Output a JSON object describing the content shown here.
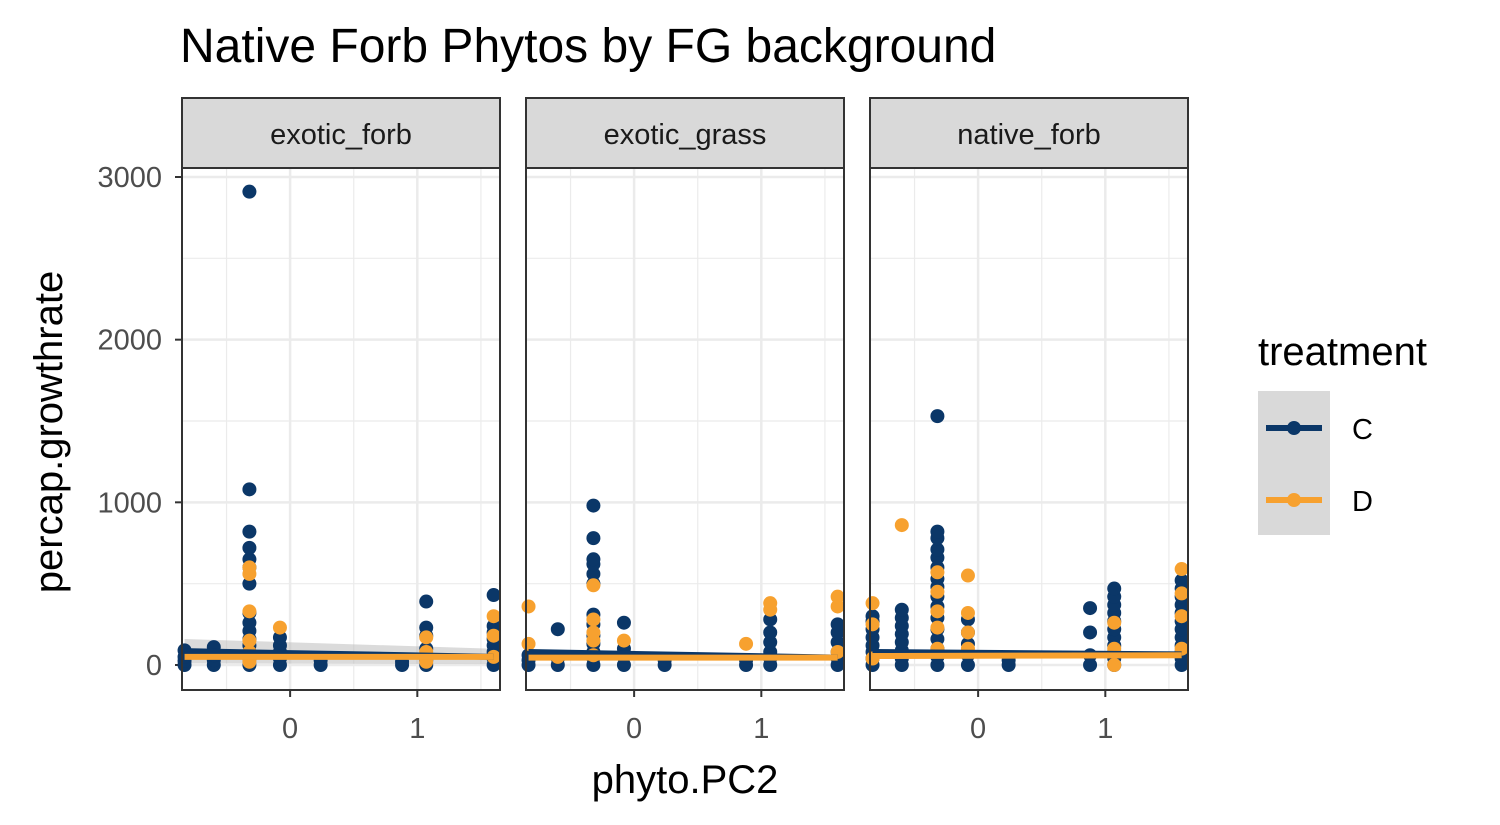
{
  "title": "Native Forb Phytos by FG background",
  "colors": {
    "C": "#0b3768",
    "D": "#f7a12f",
    "strip_bg": "#d9d9d9",
    "grid": "#ebebeb",
    "ribbon": "#bdbdbd"
  },
  "legend": {
    "title": "treatment",
    "entries": [
      {
        "key": "C",
        "label": "C",
        "color": "#0b3768"
      },
      {
        "key": "D",
        "label": "D",
        "color": "#f7a12f"
      }
    ]
  },
  "chart_data": {
    "type": "scatter",
    "title": "Native Forb Phytos by FG background",
    "xlabel": "phyto.PC2",
    "ylabel": "percap.growthrate",
    "xlim": [
      -0.85,
      1.65
    ],
    "ylim": [
      -160,
      3000
    ],
    "x_ticks": [
      0,
      1
    ],
    "y_ticks": [
      0,
      1000,
      2000,
      3000
    ],
    "facet_var": "background",
    "legend_position": "right",
    "grid": true,
    "smooth": "linear fit per treatment",
    "panels": [
      {
        "label": "exotic_forb",
        "series": [
          {
            "name": "C",
            "points": [
              [
                -0.83,
                0
              ],
              [
                -0.83,
                25
              ],
              [
                -0.83,
                50
              ],
              [
                -0.83,
                90
              ],
              [
                -0.6,
                0
              ],
              [
                -0.6,
                30
              ],
              [
                -0.6,
                60
              ],
              [
                -0.6,
                110
              ],
              [
                -0.32,
                0
              ],
              [
                -0.32,
                40
              ],
              [
                -0.32,
                80
              ],
              [
                -0.32,
                120
              ],
              [
                -0.32,
                160
              ],
              [
                -0.32,
                210
              ],
              [
                -0.32,
                260
              ],
              [
                -0.32,
                320
              ],
              [
                -0.32,
                500
              ],
              [
                -0.32,
                600
              ],
              [
                -0.32,
                650
              ],
              [
                -0.32,
                720
              ],
              [
                -0.32,
                820
              ],
              [
                -0.32,
                1080
              ],
              [
                -0.32,
                2910
              ],
              [
                -0.08,
                0
              ],
              [
                -0.08,
                40
              ],
              [
                -0.08,
                80
              ],
              [
                -0.08,
                120
              ],
              [
                -0.08,
                170
              ],
              [
                0.24,
                0
              ],
              [
                0.24,
                30
              ],
              [
                0.88,
                0
              ],
              [
                0.88,
                20
              ],
              [
                1.07,
                0
              ],
              [
                1.07,
                30
              ],
              [
                1.07,
                60
              ],
              [
                1.07,
                100
              ],
              [
                1.07,
                180
              ],
              [
                1.07,
                230
              ],
              [
                1.07,
                390
              ],
              [
                1.6,
                0
              ],
              [
                1.6,
                40
              ],
              [
                1.6,
                80
              ],
              [
                1.6,
                120
              ],
              [
                1.6,
                160
              ],
              [
                1.6,
                200
              ],
              [
                1.6,
                240
              ],
              [
                1.6,
                430
              ]
            ]
          },
          {
            "name": "D",
            "points": [
              [
                -0.32,
                20
              ],
              [
                -0.32,
                80
              ],
              [
                -0.32,
                150
              ],
              [
                -0.32,
                330
              ],
              [
                -0.32,
                560
              ],
              [
                -0.32,
                600
              ],
              [
                -0.08,
                230
              ],
              [
                1.07,
                20
              ],
              [
                1.07,
                80
              ],
              [
                1.07,
                170
              ],
              [
                1.6,
                50
              ],
              [
                1.6,
                180
              ],
              [
                1.6,
                300
              ]
            ]
          }
        ],
        "fits": [
          {
            "name": "C",
            "x": [
              -0.83,
              1.6
            ],
            "y": [
              85,
              50
            ]
          },
          {
            "name": "D",
            "x": [
              -0.83,
              1.6
            ],
            "y": [
              50,
              50
            ]
          }
        ],
        "ribbon": {
          "x": [
            -0.83,
            1.6
          ],
          "lower": [
            10,
            5
          ],
          "upper": [
            160,
            100
          ]
        }
      },
      {
        "label": "exotic_grass",
        "series": [
          {
            "name": "C",
            "points": [
              [
                -0.83,
                0
              ],
              [
                -0.83,
                30
              ],
              [
                -0.83,
                60
              ],
              [
                -0.6,
                0
              ],
              [
                -0.6,
                40
              ],
              [
                -0.6,
                220
              ],
              [
                -0.32,
                0
              ],
              [
                -0.32,
                40
              ],
              [
                -0.32,
                80
              ],
              [
                -0.32,
                130
              ],
              [
                -0.32,
                180
              ],
              [
                -0.32,
                250
              ],
              [
                -0.32,
                310
              ],
              [
                -0.32,
                500
              ],
              [
                -0.32,
                560
              ],
              [
                -0.32,
                620
              ],
              [
                -0.32,
                650
              ],
              [
                -0.32,
                780
              ],
              [
                -0.32,
                980
              ],
              [
                -0.08,
                0
              ],
              [
                -0.08,
                50
              ],
              [
                -0.08,
                100
              ],
              [
                -0.08,
                260
              ],
              [
                0.24,
                0
              ],
              [
                0.24,
                30
              ],
              [
                0.88,
                0
              ],
              [
                0.88,
                30
              ],
              [
                1.07,
                0
              ],
              [
                1.07,
                40
              ],
              [
                1.07,
                80
              ],
              [
                1.07,
                140
              ],
              [
                1.07,
                200
              ],
              [
                1.07,
                280
              ],
              [
                1.6,
                0
              ],
              [
                1.6,
                40
              ],
              [
                1.6,
                80
              ],
              [
                1.6,
                140
              ],
              [
                1.6,
                200
              ],
              [
                1.6,
                250
              ]
            ]
          },
          {
            "name": "D",
            "points": [
              [
                -0.83,
                130
              ],
              [
                -0.83,
                360
              ],
              [
                -0.6,
                50
              ],
              [
                -0.32,
                60
              ],
              [
                -0.32,
                150
              ],
              [
                -0.32,
                200
              ],
              [
                -0.32,
                280
              ],
              [
                -0.32,
                490
              ],
              [
                -0.08,
                150
              ],
              [
                0.88,
                130
              ],
              [
                1.07,
                340
              ],
              [
                1.07,
                380
              ],
              [
                1.6,
                80
              ],
              [
                1.6,
                360
              ],
              [
                1.6,
                420
              ]
            ]
          }
        ],
        "fits": [
          {
            "name": "C",
            "x": [
              -0.83,
              1.6
            ],
            "y": [
              80,
              45
            ]
          },
          {
            "name": "D",
            "x": [
              -0.83,
              1.6
            ],
            "y": [
              45,
              45
            ]
          }
        ],
        "ribbon": null
      },
      {
        "label": "native_forb",
        "series": [
          {
            "name": "C",
            "points": [
              [
                -0.83,
                0
              ],
              [
                -0.83,
                40
              ],
              [
                -0.83,
                80
              ],
              [
                -0.83,
                120
              ],
              [
                -0.83,
                170
              ],
              [
                -0.83,
                220
              ],
              [
                -0.83,
                270
              ],
              [
                -0.83,
                300
              ],
              [
                -0.6,
                0
              ],
              [
                -0.6,
                40
              ],
              [
                -0.6,
                90
              ],
              [
                -0.6,
                140
              ],
              [
                -0.6,
                190
              ],
              [
                -0.6,
                240
              ],
              [
                -0.6,
                290
              ],
              [
                -0.6,
                340
              ],
              [
                -0.32,
                0
              ],
              [
                -0.32,
                50
              ],
              [
                -0.32,
                100
              ],
              [
                -0.32,
                160
              ],
              [
                -0.32,
                220
              ],
              [
                -0.32,
                290
              ],
              [
                -0.32,
                360
              ],
              [
                -0.32,
                420
              ],
              [
                -0.32,
                480
              ],
              [
                -0.32,
                530
              ],
              [
                -0.32,
                600
              ],
              [
                -0.32,
                660
              ],
              [
                -0.32,
                710
              ],
              [
                -0.32,
                780
              ],
              [
                -0.32,
                820
              ],
              [
                -0.32,
                1530
              ],
              [
                -0.08,
                0
              ],
              [
                -0.08,
                60
              ],
              [
                -0.08,
                130
              ],
              [
                -0.08,
                200
              ],
              [
                -0.08,
                280
              ],
              [
                0.24,
                0
              ],
              [
                0.24,
                30
              ],
              [
                0.88,
                0
              ],
              [
                0.88,
                60
              ],
              [
                0.88,
                200
              ],
              [
                0.88,
                350
              ],
              [
                1.07,
                0
              ],
              [
                1.07,
                40
              ],
              [
                1.07,
                80
              ],
              [
                1.07,
                120
              ],
              [
                1.07,
                170
              ],
              [
                1.07,
                220
              ],
              [
                1.07,
                270
              ],
              [
                1.07,
                320
              ],
              [
                1.07,
                370
              ],
              [
                1.07,
                420
              ],
              [
                1.07,
                470
              ],
              [
                1.6,
                0
              ],
              [
                1.6,
                40
              ],
              [
                1.6,
                80
              ],
              [
                1.6,
                120
              ],
              [
                1.6,
                170
              ],
              [
                1.6,
                220
              ],
              [
                1.6,
                270
              ],
              [
                1.6,
                320
              ],
              [
                1.6,
                370
              ],
              [
                1.6,
                420
              ],
              [
                1.6,
                470
              ],
              [
                1.6,
                520
              ]
            ]
          },
          {
            "name": "D",
            "points": [
              [
                -0.83,
                40
              ],
              [
                -0.83,
                250
              ],
              [
                -0.83,
                380
              ],
              [
                -0.6,
                860
              ],
              [
                -0.32,
                100
              ],
              [
                -0.32,
                230
              ],
              [
                -0.32,
                330
              ],
              [
                -0.32,
                450
              ],
              [
                -0.32,
                570
              ],
              [
                -0.08,
                100
              ],
              [
                -0.08,
                200
              ],
              [
                -0.08,
                320
              ],
              [
                -0.08,
                550
              ],
              [
                1.07,
                0
              ],
              [
                1.07,
                100
              ],
              [
                1.07,
                260
              ],
              [
                1.6,
                100
              ],
              [
                1.6,
                300
              ],
              [
                1.6,
                440
              ],
              [
                1.6,
                590
              ]
            ]
          }
        ],
        "fits": [
          {
            "name": "C",
            "x": [
              -0.83,
              1.6
            ],
            "y": [
              80,
              65
            ]
          },
          {
            "name": "D",
            "x": [
              -0.83,
              1.6
            ],
            "y": [
              55,
              60
            ]
          }
        ],
        "ribbon": null
      }
    ]
  }
}
